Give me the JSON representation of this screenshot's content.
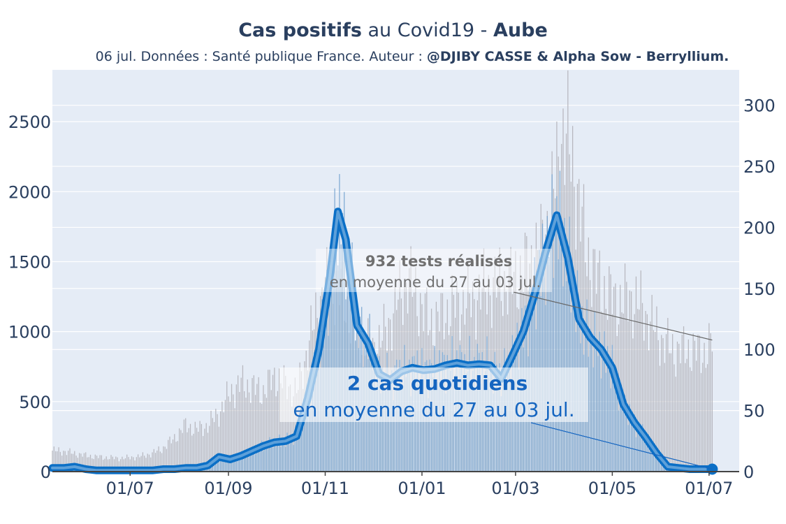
{
  "chart_data": {
    "type": "bar",
    "title": {
      "bold1": "Cas positifs",
      "normal1": " au Covid19 - ",
      "bold2": "Aube"
    },
    "subtitle": {
      "normal": "06 jul. Données : Santé publique France. Auteur : ",
      "bold": "@DJIBY CASSE & Alpha Sow - Berryllium."
    },
    "x_ticks": [
      "01/07",
      "01/09",
      "01/11",
      "01/01",
      "01/03",
      "01/05",
      "01/07"
    ],
    "y_left_ticks": [
      0,
      500,
      1000,
      1500,
      2000,
      2500
    ],
    "y_right_ticks": [
      0,
      50,
      100,
      150,
      200,
      250,
      300
    ],
    "y_left_range": [
      0,
      2870
    ],
    "y_right_range": [
      0,
      329
    ],
    "grid": true,
    "series": [
      {
        "name": "tests",
        "axis": "left",
        "style": "thin grey bars",
        "points": [
          [
            "2020-05-13",
            150
          ],
          [
            "2020-05-20",
            145
          ],
          [
            "2020-05-27",
            130
          ],
          [
            "2020-06-03",
            115
          ],
          [
            "2020-06-10",
            105
          ],
          [
            "2020-06-17",
            100
          ],
          [
            "2020-06-24",
            95
          ],
          [
            "2020-07-01",
            100
          ],
          [
            "2020-07-08",
            110
          ],
          [
            "2020-07-15",
            130
          ],
          [
            "2020-07-22",
            170
          ],
          [
            "2020-07-29",
            240
          ],
          [
            "2020-08-05",
            330
          ],
          [
            "2020-08-12",
            300
          ],
          [
            "2020-08-19",
            330
          ],
          [
            "2020-08-26",
            420
          ],
          [
            "2020-09-02",
            560
          ],
          [
            "2020-09-09",
            630
          ],
          [
            "2020-09-16",
            600
          ],
          [
            "2020-09-23",
            570
          ],
          [
            "2020-09-30",
            680
          ],
          [
            "2020-10-07",
            620
          ],
          [
            "2020-10-14",
            560
          ],
          [
            "2020-10-21",
            880
          ],
          [
            "2020-10-28",
            1200
          ],
          [
            "2020-11-04",
            1350
          ],
          [
            "2020-11-11",
            1300
          ],
          [
            "2020-11-18",
            1050
          ],
          [
            "2020-11-25",
            920
          ],
          [
            "2020-12-02",
            880
          ],
          [
            "2020-12-09",
            990
          ],
          [
            "2020-12-16",
            1200
          ],
          [
            "2020-12-23",
            1380
          ],
          [
            "2020-12-30",
            1220
          ],
          [
            "2021-01-06",
            1050
          ],
          [
            "2021-01-13",
            1100
          ],
          [
            "2021-01-20",
            1180
          ],
          [
            "2021-01-27",
            1200
          ],
          [
            "2021-02-03",
            1230
          ],
          [
            "2021-02-10",
            1300
          ],
          [
            "2021-02-17",
            1330
          ],
          [
            "2021-02-24",
            1350
          ],
          [
            "2021-03-03",
            1400
          ],
          [
            "2021-03-10",
            1480
          ],
          [
            "2021-03-17",
            1600
          ],
          [
            "2021-03-24",
            1900
          ],
          [
            "2021-03-31",
            2450
          ],
          [
            "2021-04-07",
            2150
          ],
          [
            "2021-04-14",
            1600
          ],
          [
            "2021-04-21",
            1380
          ],
          [
            "2021-04-28",
            1260
          ],
          [
            "2021-05-05",
            1200
          ],
          [
            "2021-05-12",
            1240
          ],
          [
            "2021-05-19",
            1180
          ],
          [
            "2021-05-26",
            1050
          ],
          [
            "2021-06-02",
            930
          ],
          [
            "2021-06-09",
            860
          ],
          [
            "2021-06-16",
            870
          ],
          [
            "2021-06-23",
            860
          ],
          [
            "2021-06-30",
            850
          ],
          [
            "2021-07-03",
            940
          ]
        ]
      },
      {
        "name": "cas positifs",
        "axis": "right",
        "style": "blue bars + thick moving-average line",
        "points": [
          [
            "2020-05-13",
            3
          ],
          [
            "2020-05-20",
            3
          ],
          [
            "2020-05-27",
            4
          ],
          [
            "2020-06-03",
            2
          ],
          [
            "2020-06-10",
            1
          ],
          [
            "2020-06-17",
            1
          ],
          [
            "2020-06-24",
            1
          ],
          [
            "2020-07-01",
            1
          ],
          [
            "2020-07-08",
            1
          ],
          [
            "2020-07-15",
            1
          ],
          [
            "2020-07-22",
            2
          ],
          [
            "2020-07-29",
            2
          ],
          [
            "2020-08-05",
            3
          ],
          [
            "2020-08-12",
            3
          ],
          [
            "2020-08-19",
            5
          ],
          [
            "2020-08-26",
            12
          ],
          [
            "2020-09-02",
            10
          ],
          [
            "2020-09-09",
            13
          ],
          [
            "2020-09-16",
            17
          ],
          [
            "2020-09-23",
            21
          ],
          [
            "2020-09-30",
            24
          ],
          [
            "2020-10-07",
            25
          ],
          [
            "2020-10-14",
            29
          ],
          [
            "2020-10-21",
            60
          ],
          [
            "2020-10-28",
            100
          ],
          [
            "2020-11-04",
            160
          ],
          [
            "2020-11-09",
            213
          ],
          [
            "2020-11-14",
            190
          ],
          [
            "2020-11-21",
            120
          ],
          [
            "2020-11-28",
            105
          ],
          [
            "2020-12-05",
            80
          ],
          [
            "2020-12-12",
            75
          ],
          [
            "2020-12-19",
            82
          ],
          [
            "2020-12-26",
            85
          ],
          [
            "2021-01-02",
            83
          ],
          [
            "2021-01-09",
            84
          ],
          [
            "2021-01-16",
            87
          ],
          [
            "2021-01-23",
            89
          ],
          [
            "2021-01-30",
            87
          ],
          [
            "2021-02-06",
            88
          ],
          [
            "2021-02-13",
            87
          ],
          [
            "2021-02-20",
            76
          ],
          [
            "2021-02-27",
            95
          ],
          [
            "2021-03-06",
            115
          ],
          [
            "2021-03-13",
            145
          ],
          [
            "2021-03-20",
            180
          ],
          [
            "2021-03-27",
            210
          ],
          [
            "2021-04-03",
            175
          ],
          [
            "2021-04-10",
            125
          ],
          [
            "2021-04-17",
            110
          ],
          [
            "2021-04-24",
            100
          ],
          [
            "2021-05-01",
            85
          ],
          [
            "2021-05-08",
            55
          ],
          [
            "2021-05-15",
            40
          ],
          [
            "2021-05-22",
            28
          ],
          [
            "2021-05-29",
            15
          ],
          [
            "2021-06-05",
            4
          ],
          [
            "2021-06-12",
            3
          ],
          [
            "2021-06-19",
            2
          ],
          [
            "2021-06-26",
            2
          ],
          [
            "2021-07-03",
            2
          ]
        ]
      }
    ],
    "annotations": [
      {
        "kind": "tests",
        "value_text": "932 tests réalisés",
        "period_text": "en moyenne du 27 au 03 jul.",
        "color": "#707070"
      },
      {
        "kind": "cases",
        "value_text": "2 cas quotidiens",
        "period_text": "en moyenne du 27 au 03 jul.",
        "color": "#1565c0"
      }
    ],
    "colors": {
      "plot_bg": "#e5ecf6",
      "tests_bar": "#b7b7be",
      "case_bar": "#6d9fcd",
      "case_line_outer": "#0b6fc6",
      "case_line_inner": "#a4c8e9",
      "axis_text": "#2a3f5f"
    }
  }
}
